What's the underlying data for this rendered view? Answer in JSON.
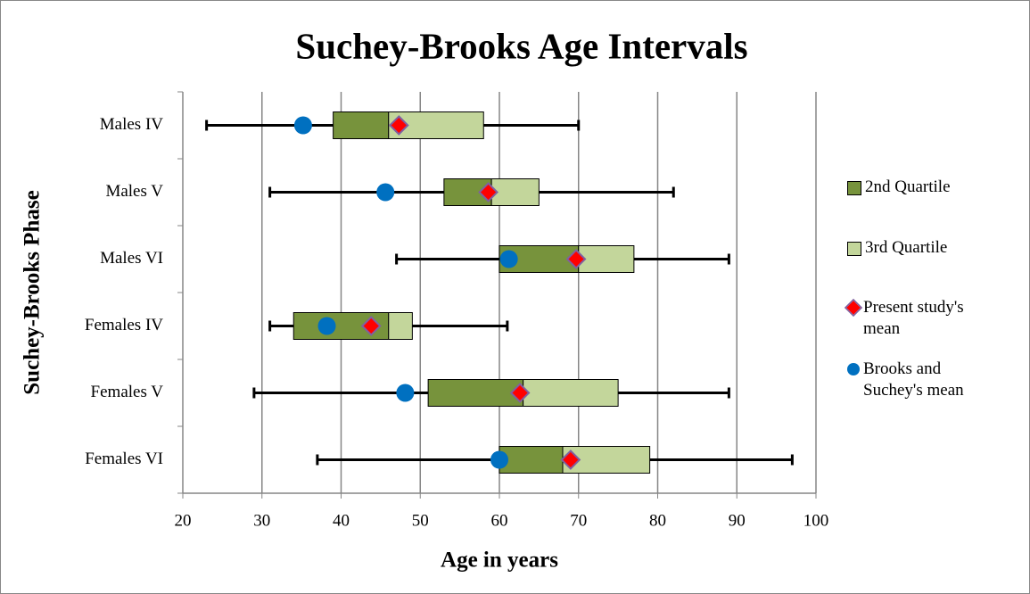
{
  "chart_data": {
    "type": "boxplot",
    "title": "Suchey-Brooks Age Intervals",
    "x_label": "Age in years",
    "y_label": "Suchey-Brooks Phase",
    "categories": [
      "Males IV",
      "Males V",
      "Males VI",
      "Females IV",
      "Females V",
      "Females VI"
    ],
    "min": [
      23,
      31,
      47,
      31,
      29,
      37
    ],
    "q1": [
      39,
      53,
      60,
      34,
      51,
      60
    ],
    "median": [
      46,
      59,
      70,
      46,
      63,
      68
    ],
    "q3": [
      58,
      65,
      77,
      49,
      75,
      79
    ],
    "max": [
      70,
      82,
      89,
      61,
      89,
      97
    ],
    "series": [
      {
        "name": "2nd Quartile",
        "color": "#77933c"
      },
      {
        "name": "3rd Quartile",
        "color": "#c3d69b"
      },
      {
        "name": "Present study's mean",
        "color": "#ff0000",
        "values": [
          47.3,
          58.6,
          69.7,
          43.8,
          62.6,
          69
        ]
      },
      {
        "name": "Brooks and Suchey's mean",
        "color": "#0070c0",
        "values": [
          35.2,
          45.6,
          61.2,
          38.2,
          48.1,
          60.0
        ]
      }
    ],
    "xlim": [
      20,
      100
    ],
    "xticks": [
      20,
      30,
      40,
      50,
      60,
      70,
      80,
      90,
      100
    ],
    "grid": true
  }
}
